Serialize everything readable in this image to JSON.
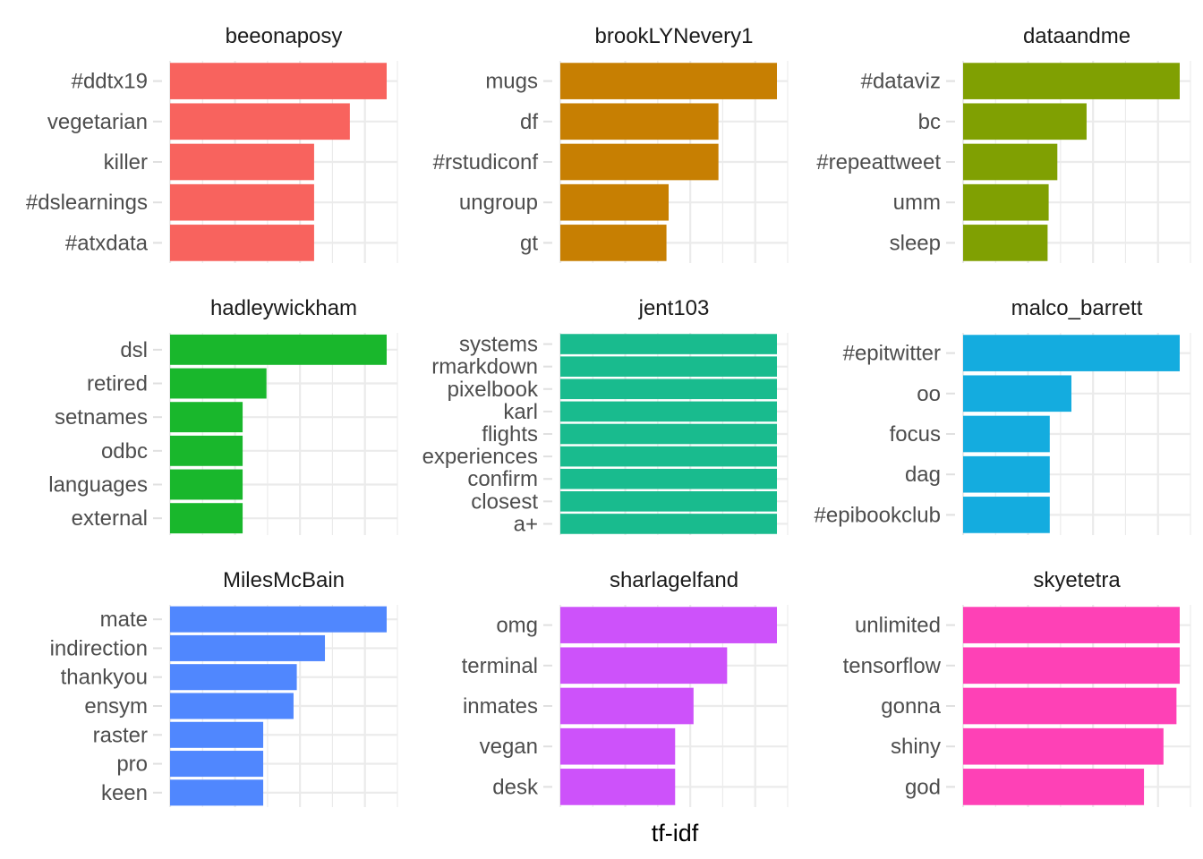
{
  "chart_data": {
    "type": "bar",
    "orientation": "horizontal",
    "xlabel": "tf-idf",
    "grid": true,
    "legend": "none",
    "facets": [
      {
        "title": "beeonaposy",
        "color": "#F8635E",
        "categories": [
          "#ddtx19",
          "vegetarian",
          "killer",
          "#dslearnings",
          "#atxdata"
        ],
        "values": [
          1.0,
          0.83,
          0.665,
          0.665,
          0.665
        ]
      },
      {
        "title": "brookLYNevery1",
        "color": "#C77F02",
        "categories": [
          "mugs",
          "df",
          "#rstudiconf",
          "ungroup",
          "gt"
        ],
        "values": [
          1.0,
          0.73,
          0.73,
          0.5,
          0.49
        ]
      },
      {
        "title": "dataandme",
        "color": "#80A002",
        "categories": [
          "#dataviz",
          "bc",
          "#repeattweet",
          "umm",
          "sleep"
        ],
        "values": [
          1.0,
          0.57,
          0.435,
          0.395,
          0.39
        ]
      },
      {
        "title": "hadleywickham",
        "color": "#19B72C",
        "categories": [
          "dsl",
          "retired",
          "setnames",
          "odbc",
          "languages",
          "external"
        ],
        "values": [
          1.0,
          0.445,
          0.335,
          0.335,
          0.335,
          0.335
        ]
      },
      {
        "title": "jent103",
        "color": "#19BB8E",
        "categories": [
          "systems",
          "rmarkdown",
          "pixelbook",
          "karl",
          "flights",
          "experiences",
          "confirm",
          "closest",
          "a+"
        ],
        "values": [
          1.0,
          1.0,
          1.0,
          1.0,
          1.0,
          1.0,
          1.0,
          1.0,
          1.0
        ]
      },
      {
        "title": "malco_barrett",
        "color": "#14ACDF",
        "categories": [
          "#epitwitter",
          "oo",
          "focus",
          "dag",
          "#epibookclub"
        ],
        "values": [
          1.0,
          0.5,
          0.4,
          0.4,
          0.4
        ]
      },
      {
        "title": "MilesMcBain",
        "color": "#5087FE",
        "categories": [
          "mate",
          "indirection",
          "thankyou",
          "ensym",
          "raster",
          "pro",
          "keen"
        ],
        "values": [
          1.0,
          0.715,
          0.585,
          0.57,
          0.43,
          0.43,
          0.43
        ]
      },
      {
        "title": "sharlagelfand",
        "color": "#CD52FA",
        "categories": [
          "omg",
          "terminal",
          "inmates",
          "vegan",
          "desk"
        ],
        "values": [
          1.0,
          0.77,
          0.615,
          0.53,
          0.53
        ]
      },
      {
        "title": "skyetetra",
        "color": "#FE41B6",
        "categories": [
          "unlimited",
          "tensorflow",
          "gonna",
          "shiny",
          "god"
        ],
        "values": [
          1.0,
          1.0,
          0.985,
          0.925,
          0.835
        ]
      }
    ]
  }
}
